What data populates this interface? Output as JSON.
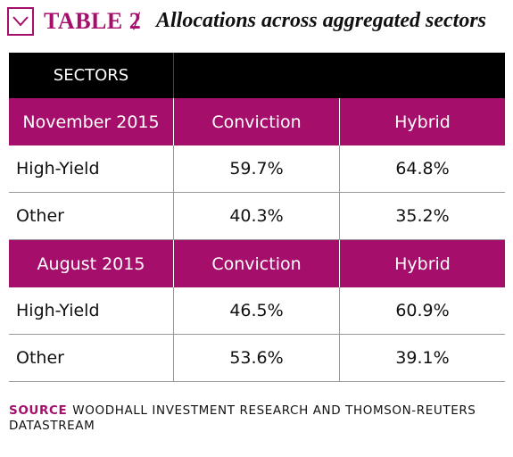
{
  "title": {
    "label": "TABLE 2",
    "slash": "/",
    "text": "Allocations across aggregated sectors",
    "accent_color": "#a50f6b",
    "icon": "chevron-down-icon"
  },
  "table": {
    "header": {
      "label": "SECTORS"
    },
    "sections": [
      {
        "period": "November 2015",
        "col1": "Conviction",
        "col2": "Hybrid",
        "rows": [
          {
            "sector": "High-Yield",
            "conviction": "59.7%",
            "hybrid": "64.8%"
          },
          {
            "sector": "Other",
            "conviction": "40.3%",
            "hybrid": "35.2%"
          }
        ]
      },
      {
        "period": "August 2015",
        "col1": "Conviction",
        "col2": "Hybrid",
        "rows": [
          {
            "sector": "High-Yield",
            "conviction": "46.5%",
            "hybrid": "60.9%"
          },
          {
            "sector": "Other",
            "conviction": "53.6%",
            "hybrid": "39.1%"
          }
        ]
      }
    ]
  },
  "source": {
    "label": "SOURCE",
    "text": "WOODHALL INVESTMENT RESEARCH AND THOMSON-REUTERS DATASTREAM"
  }
}
